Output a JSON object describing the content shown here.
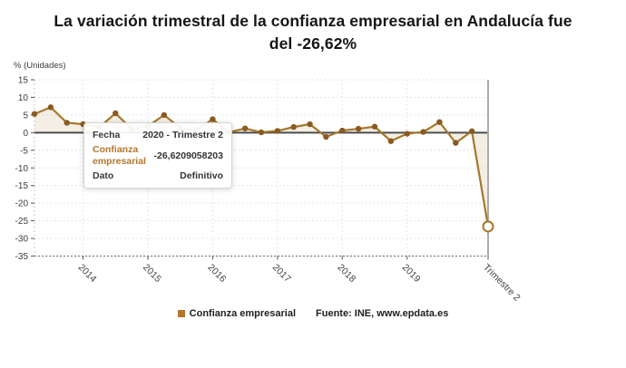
{
  "title": {
    "line1": "La variación trimestral de la confianza empresarial en Andalucía fue",
    "line2": "del -26,62%"
  },
  "axis_unit_label": "% (Unidades)",
  "tooltip": {
    "rows": [
      {
        "label": "Fecha",
        "value": "2020 - Trimestre 2"
      },
      {
        "label": "Confianza empresarial",
        "value": "-26,6209058203"
      },
      {
        "label": "Dato",
        "value": "Definitivo"
      }
    ],
    "accent_color": "#b5762a"
  },
  "legend": {
    "series_label": "Confianza empresarial",
    "source_label": "Fuente: INE, www.epdata.es",
    "marker_color": "#b5752b"
  },
  "chart_data": {
    "type": "line",
    "title": "La variación trimestral de la confianza empresarial en Andalucía fue del -26,62%",
    "ylabel": "% (Unidades)",
    "x": [
      "2013 T2",
      "2013 T3",
      "2013 T4",
      "2014 T1",
      "2014 T2",
      "2014 T3",
      "2014 T4",
      "2015 T1",
      "2015 T2",
      "2015 T3",
      "2015 T4",
      "2016 T1",
      "2016 T2",
      "2016 T3",
      "2016 T4",
      "2017 T1",
      "2017 T2",
      "2017 T3",
      "2017 T4",
      "2018 T1",
      "2018 T2",
      "2018 T3",
      "2018 T4",
      "2019 T1",
      "2019 T2",
      "2019 T3",
      "2019 T4",
      "2020 T1",
      "2020 T2"
    ],
    "series": [
      {
        "name": "Confianza empresarial",
        "values": [
          5.3,
          7.2,
          2.8,
          2.4,
          1.5,
          5.5,
          1.0,
          1.8,
          5.0,
          1.3,
          0.8,
          3.8,
          0.1,
          1.2,
          0.1,
          0.5,
          1.6,
          2.4,
          -1.2,
          0.6,
          1.1,
          1.7,
          -2.4,
          -0.3,
          0.2,
          3.0,
          -2.9,
          0.4,
          -26.6209058203
        ]
      }
    ],
    "highlighted_point": {
      "x": "2020 T2",
      "value": -26.6209058203,
      "style": "open-circle"
    },
    "x_tick_indices": [
      3,
      7,
      11,
      15,
      19,
      23,
      28
    ],
    "x_tick_labels": [
      "2014",
      "2015",
      "2016",
      "2017",
      "2018",
      "2019",
      "Trimestre 2"
    ],
    "y_ticks": [
      15,
      10,
      5,
      0,
      -5,
      -10,
      -15,
      -20,
      -25,
      -30,
      -35
    ],
    "ylim": [
      -35,
      15
    ],
    "grid": true,
    "legend_position": "bottom",
    "line_color": "#a5782c",
    "dot_color": "#8a5a20",
    "area_color": "rgba(181,124,47,0.13)",
    "zero_line_color": "#4d4d4d",
    "grid_color": "#dedede",
    "axis_text_color": "#3c3c3c"
  }
}
